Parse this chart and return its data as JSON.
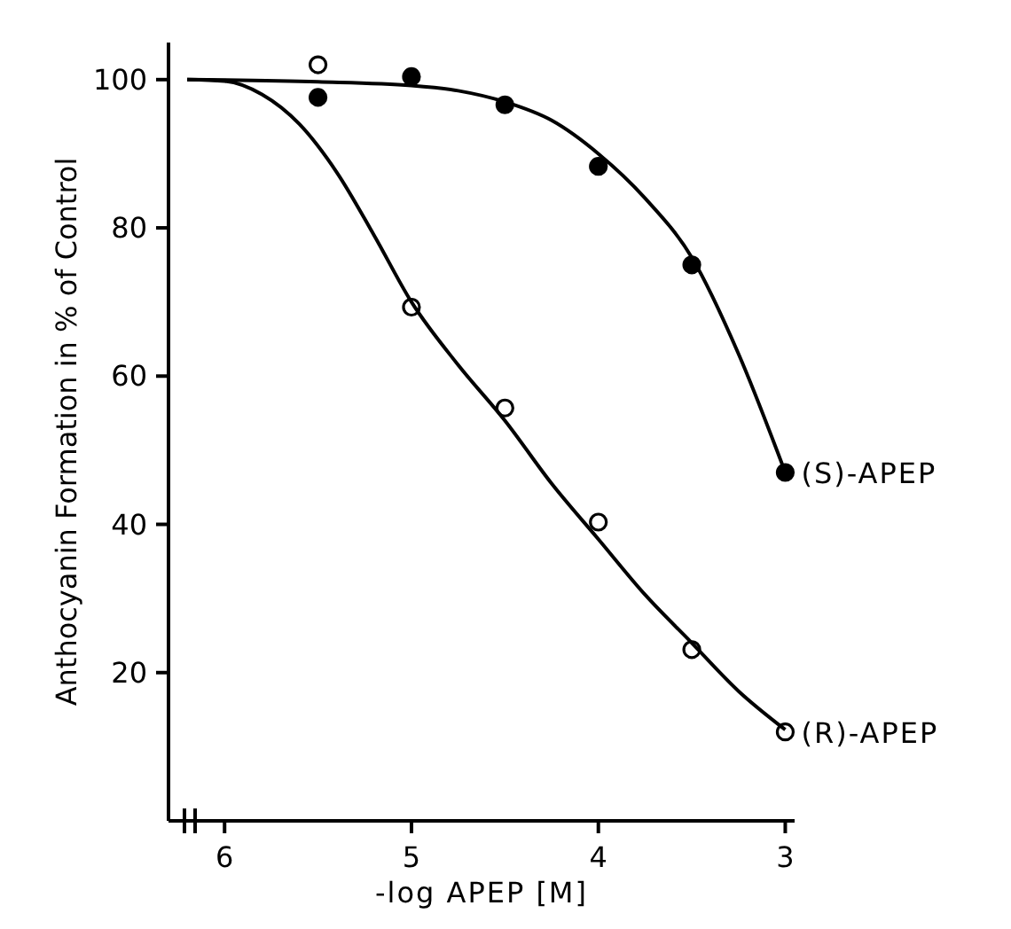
{
  "chart_data": {
    "type": "scatter",
    "xlabel": "-log APEP [M]",
    "ylabel": "Anthocyanin Formation in % of Control",
    "xlim": [
      6.3,
      2.95
    ],
    "ylim": [
      0,
      105
    ],
    "xticks": [
      6,
      5,
      4,
      3
    ],
    "yticks": [
      20,
      40,
      60,
      80,
      100
    ],
    "grid": false,
    "legend": false,
    "series": [
      {
        "name": "(S)-APEP",
        "marker": "circle",
        "color": "#000000",
        "x": [
          5.5,
          5,
          4.5,
          4,
          3.5,
          3
        ],
        "values": [
          97.6,
          100.4,
          96.6,
          88.3,
          75,
          47
        ]
      },
      {
        "name": "(R)-APEP",
        "marker": "circle",
        "color": "#ffffff",
        "x": [
          5.5,
          5,
          4.5,
          4,
          3.5,
          3
        ],
        "values": [
          102,
          69.3,
          55.7,
          40.3,
          23.1,
          12
        ]
      },
      {
        "type": "line",
        "color": "#000000",
        "x": [
          6.2,
          5.5,
          5,
          4.75,
          4.5,
          4.25,
          4,
          3.75,
          3.5,
          3.25,
          3
        ],
        "values": [
          100,
          99.7,
          99.2,
          98.5,
          97,
          94.5,
          90,
          84,
          76,
          63,
          47
        ]
      },
      {
        "type": "line",
        "color": "#000000",
        "x": [
          6.2,
          6,
          5.8,
          5.6,
          5.4,
          5.2,
          5,
          4.75,
          4.5,
          4.25,
          4,
          3.75,
          3.5,
          3.25,
          3
        ],
        "values": [
          100,
          99.8,
          98,
          94,
          87.5,
          79,
          70,
          61.5,
          54,
          45.5,
          38,
          30.5,
          24,
          17.5,
          12.3
        ]
      }
    ]
  }
}
